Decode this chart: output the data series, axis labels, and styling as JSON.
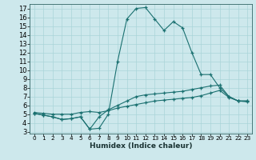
{
  "xlabel": "Humidex (Indice chaleur)",
  "background_color": "#cde8ec",
  "line_color": "#1a7070",
  "xlim": [
    -0.5,
    23.5
  ],
  "ylim": [
    2.8,
    17.5
  ],
  "yticks": [
    3,
    4,
    5,
    6,
    7,
    8,
    9,
    10,
    11,
    12,
    13,
    14,
    15,
    16,
    17
  ],
  "xticks": [
    0,
    1,
    2,
    3,
    4,
    5,
    6,
    7,
    8,
    9,
    10,
    11,
    12,
    13,
    14,
    15,
    16,
    17,
    18,
    19,
    20,
    21,
    22,
    23
  ],
  "series1_y": [
    5.1,
    4.9,
    4.7,
    4.4,
    4.5,
    4.7,
    3.3,
    3.4,
    5.0,
    11.0,
    15.8,
    17.0,
    17.1,
    15.8,
    14.5,
    15.5,
    14.8,
    12.0,
    9.5,
    9.5,
    8.0,
    7.0,
    6.5,
    6.5
  ],
  "series2_y": [
    5.1,
    4.9,
    4.7,
    4.4,
    4.5,
    4.7,
    3.3,
    4.7,
    5.5,
    6.0,
    6.5,
    7.0,
    7.2,
    7.3,
    7.4,
    7.5,
    7.6,
    7.8,
    8.0,
    8.2,
    8.3,
    7.0,
    6.5,
    6.5
  ],
  "series3_y": [
    5.2,
    5.1,
    5.0,
    5.0,
    5.0,
    5.2,
    5.3,
    5.2,
    5.4,
    5.7,
    5.9,
    6.1,
    6.3,
    6.5,
    6.6,
    6.7,
    6.8,
    6.9,
    7.1,
    7.4,
    7.7,
    6.9,
    6.5,
    6.4
  ],
  "grid_color": "#aad4d8",
  "xlabel_fontsize": 6.5,
  "tick_fontsize_x": 5.2,
  "tick_fontsize_y": 6.0
}
